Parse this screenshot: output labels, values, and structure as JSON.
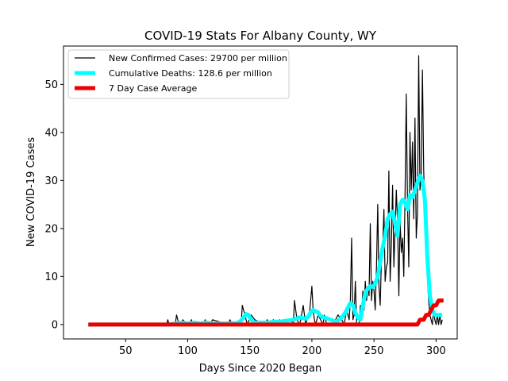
{
  "chart_data": {
    "type": "line",
    "title": "COVID-19 Stats For Albany County, WY",
    "xlabel": "Days Since 2020 Began",
    "ylabel": "New COVID-19 Cases",
    "xlim": [
      0,
      317
    ],
    "ylim": [
      -3,
      58
    ],
    "xticks": [
      50,
      100,
      150,
      200,
      250,
      300
    ],
    "yticks": [
      0,
      10,
      20,
      30,
      40,
      50
    ],
    "grid": false,
    "legend_position": "top-left",
    "series": [
      {
        "name": "New Confirmed Cases: 29700 per million",
        "color": "#000000",
        "x": [
          20,
          80,
          83,
          84,
          85,
          88,
          89,
          90,
          91,
          93,
          95,
          96,
          100,
          101,
          103,
          104,
          110,
          113,
          114,
          116,
          118,
          120,
          133,
          134,
          136,
          138,
          143,
          144,
          145,
          146,
          147,
          148,
          151,
          154,
          162,
          164,
          166,
          169,
          172,
          174,
          176,
          177,
          178,
          180,
          181,
          183,
          185,
          186,
          188,
          190,
          191,
          193,
          195,
          196,
          198,
          200,
          201,
          202,
          203,
          204,
          205,
          207,
          209,
          210,
          212,
          215,
          217,
          221,
          224,
          226,
          228,
          230,
          231,
          232,
          233,
          234,
          235,
          236,
          238,
          239,
          240,
          241,
          242,
          243,
          244,
          245,
          246,
          247,
          248,
          249,
          250,
          251,
          252,
          253,
          254,
          255,
          256,
          257,
          258,
          259,
          260,
          261,
          262,
          263,
          264,
          265,
          266,
          267,
          268,
          269,
          270,
          271,
          272,
          273,
          274,
          275,
          276,
          277,
          278,
          279,
          280,
          281,
          282,
          283,
          284,
          285,
          286,
          287,
          288,
          289,
          290,
          291,
          292,
          293,
          294,
          295,
          296,
          297,
          298,
          299,
          300,
          301,
          302,
          303,
          304,
          305
        ],
        "y": [
          0,
          0,
          0,
          1,
          0,
          0,
          0,
          0,
          2,
          0,
          0,
          1,
          0,
          0,
          1,
          0,
          0,
          0,
          1,
          0,
          0,
          1,
          0,
          1,
          0,
          0,
          0,
          4,
          3,
          2,
          1,
          0,
          2,
          1,
          0,
          1,
          0,
          1,
          0,
          1,
          0,
          1,
          0,
          1,
          1,
          1,
          0,
          5,
          1,
          0,
          1,
          4,
          0,
          1,
          2,
          8,
          3,
          1,
          0,
          1,
          2,
          1,
          0,
          2,
          0,
          0,
          0,
          2,
          1,
          0,
          3,
          1,
          5,
          18,
          1,
          2,
          9,
          0,
          0,
          4,
          1,
          7,
          3,
          9,
          5,
          8,
          6,
          21,
          5,
          9,
          7,
          3,
          12,
          25,
          8,
          4,
          14,
          16,
          24,
          9,
          12,
          13,
          32,
          9,
          17,
          29,
          12,
          20,
          28,
          21,
          6,
          22,
          15,
          18,
          10,
          27,
          48,
          25,
          12,
          40,
          28,
          38,
          22,
          43,
          18,
          23,
          56,
          28,
          31,
          53,
          32,
          25,
          18,
          10,
          5,
          2,
          1,
          0,
          3,
          1,
          0,
          2,
          0,
          2,
          0,
          1
        ]
      },
      {
        "name": "Cumulative Deaths: 128.6 per million",
        "color": "#00ffff",
        "x": [
          20,
          85,
          90,
          95,
          100,
          105,
          110,
          115,
          120,
          130,
          140,
          143,
          145,
          147,
          149,
          151,
          153,
          155,
          160,
          165,
          170,
          175,
          180,
          185,
          190,
          195,
          197,
          199,
          201,
          203,
          205,
          207,
          209,
          211,
          213,
          215,
          217,
          219,
          221,
          223,
          225,
          227,
          229,
          231,
          233,
          235,
          237,
          239,
          241,
          243,
          245,
          247,
          249,
          251,
          253,
          255,
          257,
          259,
          261,
          263,
          265,
          267,
          269,
          271,
          273,
          275,
          277,
          279,
          281,
          283,
          285,
          287,
          289,
          291,
          293,
          295,
          297,
          299,
          301,
          303,
          305
        ],
        "y": [
          0,
          0,
          0.2,
          0.4,
          0.2,
          0.4,
          0.2,
          0.4,
          0.2,
          0.2,
          0.3,
          0.8,
          1.5,
          2.2,
          2.0,
          1.0,
          0.5,
          0.4,
          0.4,
          0.4,
          0.6,
          0.6,
          0.8,
          1.0,
          1.5,
          1.2,
          1.6,
          2.5,
          3.0,
          2.8,
          2.5,
          1.8,
          1.5,
          1.4,
          1.2,
          1.0,
          0.8,
          0.6,
          0.8,
          1.2,
          1.8,
          2.5,
          3.5,
          4.5,
          4.0,
          2.5,
          1.5,
          1.0,
          4.0,
          6.5,
          7.5,
          8.0,
          7.8,
          8.5,
          10.0,
          13.0,
          16.0,
          18.5,
          22.0,
          23.0,
          23.5,
          21.0,
          18.5,
          25.0,
          26.0,
          25.5,
          24.0,
          27.0,
          26.5,
          28.0,
          29.5,
          31.0,
          30.0,
          26.0,
          14.0,
          6.0,
          3.0,
          2.0,
          2.0,
          2.0,
          2.0
        ]
      },
      {
        "name": "7 Day Case Average",
        "color": "#ee0000",
        "x": [
          20,
          280,
          285,
          287,
          288,
          290,
          292,
          294,
          296,
          298,
          300,
          302,
          304,
          306
        ],
        "y": [
          0,
          0,
          0,
          1,
          1,
          1,
          2,
          2,
          3,
          4,
          4,
          5,
          5,
          5
        ]
      }
    ]
  }
}
